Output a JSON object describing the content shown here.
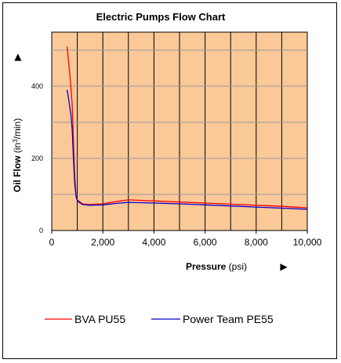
{
  "chart_data": {
    "type": "line",
    "title": "Electric Pumps Flow Chart",
    "xlabel": {
      "main": "Pressure",
      "unit": "(psi)"
    },
    "ylabel": {
      "main": "Oil Flow",
      "unit_prefix": "(in",
      "unit_sup": "3",
      "unit_suffix": "/min)"
    },
    "arrow_glyph": "▶",
    "xlim": [
      0,
      10000
    ],
    "ylim": [
      0,
      550
    ],
    "x_ticks": [
      0,
      2000,
      4000,
      6000,
      8000,
      10000
    ],
    "x_tick_labels": [
      "0",
      "2,000",
      "4,000",
      "6,000",
      "8,000",
      "10,000"
    ],
    "y_ticks": [
      0,
      200,
      400
    ],
    "y_tick_labels": [
      "0",
      "200",
      "400"
    ],
    "x_gridlines": [
      1000,
      2000,
      3000,
      4000,
      5000,
      6000,
      7000,
      8000,
      9000
    ],
    "y_gridlines": [
      100,
      200,
      300,
      400,
      500
    ],
    "plot_background": "#FBC898",
    "legend_position": "bottom",
    "series": [
      {
        "name": "BVA PU55",
        "color": "#FF0000",
        "x": [
          600,
          700,
          800,
          850,
          900,
          950,
          1000,
          1200,
          1500,
          2000,
          2500,
          3000,
          4000,
          5000,
          6000,
          7000,
          8000,
          9000,
          10000
        ],
        "y": [
          510,
          440,
          350,
          250,
          150,
          100,
          85,
          74,
          72,
          74,
          80,
          85,
          82,
          79,
          76,
          73,
          70,
          67,
          63
        ]
      },
      {
        "name": "Power Team PE55",
        "color": "#0000CC",
        "x": [
          600,
          650,
          750,
          800,
          850,
          900,
          950,
          1000,
          1200,
          1500,
          2000,
          2500,
          3000,
          4000,
          5000,
          6000,
          7000,
          8000,
          9000,
          10000
        ],
        "y": [
          390,
          370,
          320,
          280,
          200,
          130,
          95,
          82,
          72,
          70,
          71,
          75,
          78,
          76,
          74,
          71,
          68,
          65,
          62,
          59
        ]
      }
    ]
  }
}
